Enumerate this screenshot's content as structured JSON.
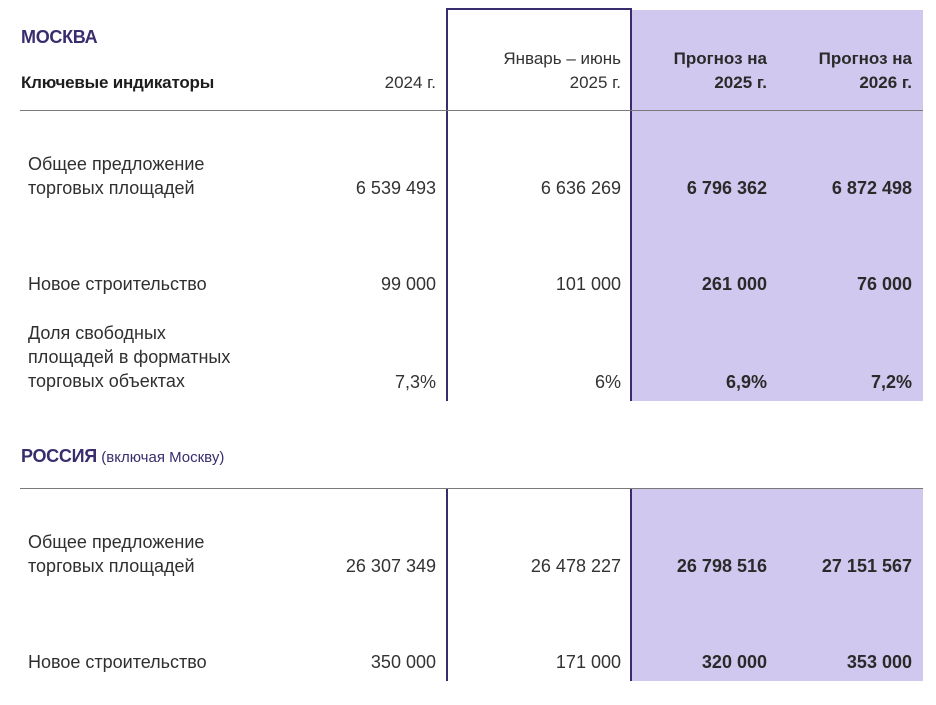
{
  "header": {
    "indicators_label": "Ключевые индикаторы",
    "col_2024": "2024 г.",
    "col_h1_2025_line1": "Январь – июнь",
    "col_h1_2025_line2": "2025 г.",
    "col_f2025_line1": "Прогноз на",
    "col_f2025_line2": "2025 г.",
    "col_f2026_line1": "Прогноз на",
    "col_f2026_line2": "2026 г."
  },
  "moscow": {
    "title": "МОСКВА",
    "rows": [
      {
        "label_line1": "Общее предложение",
        "label_line2": "торговых площадей",
        "label_line3": "",
        "v2024": "6 539 493",
        "vh1": "6 636 269",
        "f2025": "6 796 362",
        "f2026": "6 872 498"
      },
      {
        "label_line1": "Новое строительство",
        "label_line2": "",
        "label_line3": "",
        "v2024": "99 000",
        "vh1": "101 000",
        "f2025": "261 000",
        "f2026": "76 000"
      },
      {
        "label_line1": "Доля свободных",
        "label_line2": "площадей в форматных",
        "label_line3": "торговых объектах",
        "v2024": "7,3%",
        "vh1": "6%",
        "f2025": "6,9%",
        "f2026": "7,2%"
      }
    ]
  },
  "russia": {
    "title": "РОССИЯ",
    "subtitle": "(включая Москву)",
    "rows": [
      {
        "label_line1": "Общее предложение",
        "label_line2": "торговых площадей",
        "v2024": "26 307 349",
        "vh1": "26 478 227",
        "f2025": "26 798 516",
        "f2026": "27 151 567"
      },
      {
        "label_line1": "Новое строительство",
        "label_line2": "",
        "v2024": "350 000",
        "vh1": "171 000",
        "f2025": "320 000",
        "f2026": "353 000"
      }
    ]
  },
  "colors": {
    "accent": "#3a2d6e",
    "forecast_shade": "#d0c8ee"
  }
}
